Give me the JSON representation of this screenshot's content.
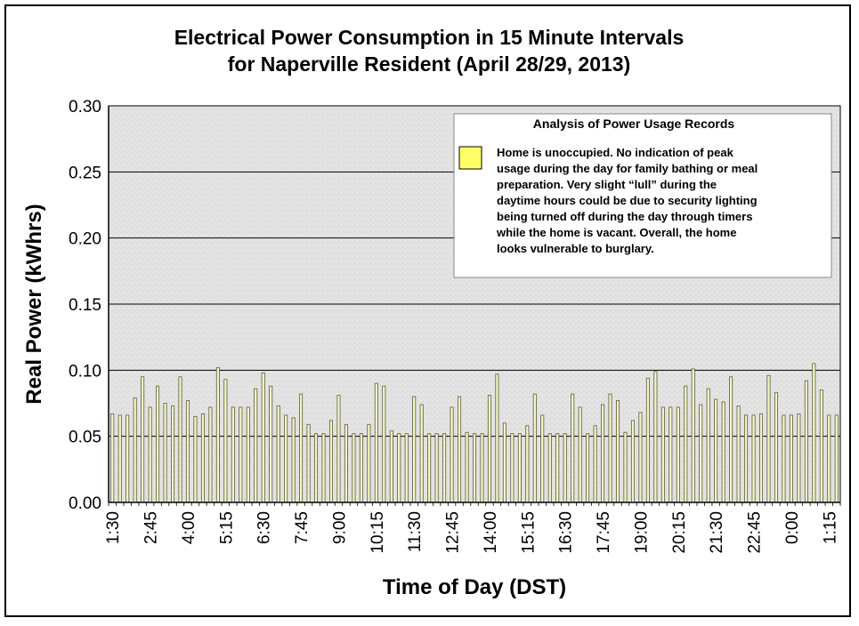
{
  "chart_data": {
    "type": "bar",
    "title_line1": "Electrical Power Consumption in 15 Minute Intervals",
    "title_line2": "for Naperville Resident (April 28/29, 2013)",
    "xlabel": "Time of Day (DST)",
    "ylabel": "Real Power (kWhrs)",
    "ylim": [
      0,
      0.3
    ],
    "yticks": [
      "0.00",
      "0.05",
      "0.10",
      "0.15",
      "0.20",
      "0.25",
      "0.30"
    ],
    "grid": true,
    "legend": {
      "placement": "top-right",
      "title": "Analysis of Power Usage Records",
      "swatch_color": "#ffff66",
      "lines": [
        "Home is unoccupied.  No indication of peak",
        "usage during the day for family bathing or meal",
        "preparation.  Very slight “lull” during the",
        "daytime hours could be due to security lighting",
        "being turned off during the day  through timers",
        "while the home is vacant.  Overall, the home",
        "looks vulnerable to burglary."
      ]
    },
    "bar_color": "#f5f5c8",
    "bar_edge_color": "#5a5a3c",
    "tick_labels": [
      "1:30",
      "2:45",
      "4:00",
      "5:15",
      "6:30",
      "7:45",
      "9:00",
      "10:15",
      "11:30",
      "12:45",
      "14:00",
      "15:15",
      "16:30",
      "17:45",
      "19:00",
      "20:15",
      "21:30",
      "22:45",
      "0:00",
      "1:15"
    ],
    "label_every": 5,
    "values": [
      0.067,
      0.066,
      0.066,
      0.079,
      0.095,
      0.072,
      0.088,
      0.075,
      0.073,
      0.095,
      0.077,
      0.065,
      0.067,
      0.072,
      0.102,
      0.093,
      0.072,
      0.072,
      0.072,
      0.086,
      0.098,
      0.088,
      0.073,
      0.066,
      0.064,
      0.082,
      0.059,
      0.052,
      0.052,
      0.062,
      0.081,
      0.059,
      0.052,
      0.052,
      0.059,
      0.09,
      0.088,
      0.054,
      0.052,
      0.052,
      0.08,
      0.074,
      0.052,
      0.052,
      0.052,
      0.072,
      0.08,
      0.053,
      0.052,
      0.052,
      0.081,
      0.097,
      0.06,
      0.052,
      0.052,
      0.058,
      0.082,
      0.066,
      0.052,
      0.052,
      0.052,
      0.082,
      0.072,
      0.052,
      0.058,
      0.074,
      0.082,
      0.077,
      0.053,
      0.062,
      0.068,
      0.094,
      0.099,
      0.072,
      0.072,
      0.072,
      0.088,
      0.101,
      0.074,
      0.086,
      0.078,
      0.076,
      0.095,
      0.073,
      0.066,
      0.066,
      0.067,
      0.096,
      0.083,
      0.066,
      0.066,
      0.067,
      0.092,
      0.105,
      0.085,
      0.066,
      0.066
    ]
  }
}
